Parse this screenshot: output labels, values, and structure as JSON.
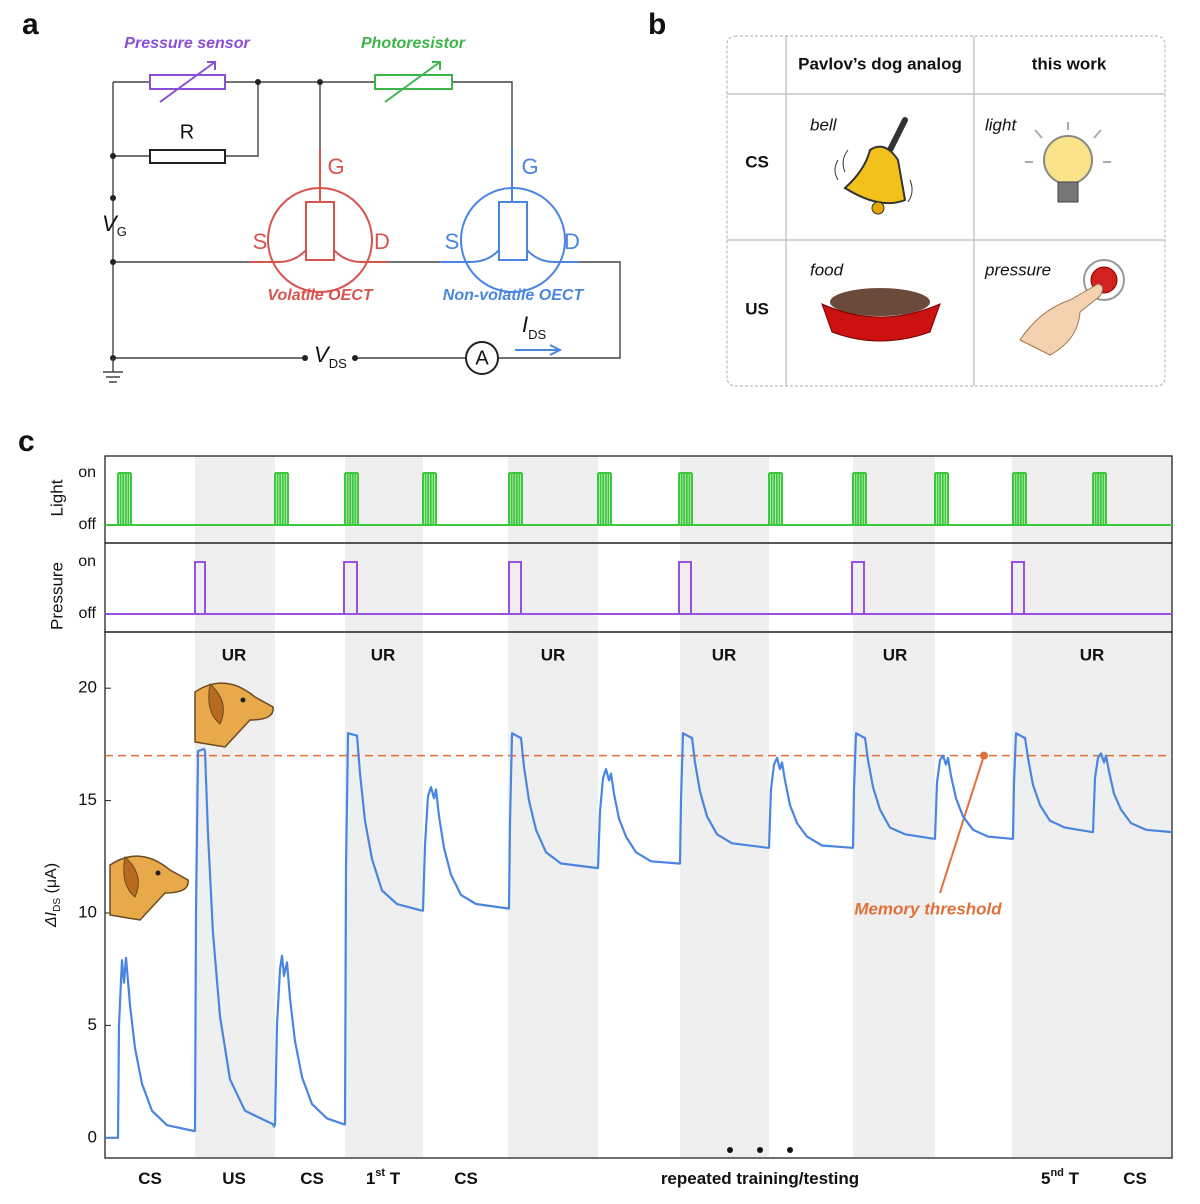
{
  "panel_labels": {
    "a": "a",
    "b": "b",
    "c": "c"
  },
  "circuit": {
    "pressure_sensor": "Pressure sensor",
    "photoresistor": "Photoresistor",
    "resistor": "R",
    "vg": {
      "main": "V",
      "sub": "G"
    },
    "volatile": {
      "g": "G",
      "s": "S",
      "d": "D",
      "label": "Volatile OECT"
    },
    "nonvolatile": {
      "g": "G",
      "s": "S",
      "d": "D",
      "label": "Non-volatile OECT"
    },
    "vds": {
      "main": "V",
      "sub": "DS"
    },
    "ammeter": "A",
    "ids": {
      "main": "I",
      "sub": "DS"
    }
  },
  "table": {
    "columns": [
      "Pavlov’s dog analog",
      "this work"
    ],
    "rows": [
      {
        "label": "CS",
        "cells": [
          "bell",
          "light"
        ]
      },
      {
        "label": "US",
        "cells": [
          "food",
          "pressure"
        ]
      }
    ]
  },
  "chart_data": {
    "type": "line",
    "color": "#4a86e0",
    "ylabel": {
      "main": "ΔI",
      "sub": "DS",
      "unit": " (μA)"
    },
    "xlim": [
      0,
      1067
    ],
    "ylim": [
      -0.9,
      22.5
    ],
    "yticks": [
      0,
      5,
      10,
      15,
      20
    ],
    "light": {
      "label": "Light",
      "levels": [
        "on",
        "off"
      ],
      "color": "#3cc83c",
      "pulses": [
        [
          13,
          26
        ],
        [
          170,
          183
        ],
        [
          240,
          253
        ],
        [
          318,
          331
        ],
        [
          404,
          417
        ],
        [
          493,
          506
        ],
        [
          574,
          587
        ],
        [
          664,
          677
        ],
        [
          748,
          761
        ],
        [
          830,
          843
        ],
        [
          908,
          921
        ],
        [
          988,
          1001
        ]
      ]
    },
    "pressure": {
      "label": "Pressure",
      "levels": [
        "on",
        "off"
      ],
      "color": "#9a4fe0",
      "pulses": [
        [
          90,
          100
        ],
        [
          239,
          252
        ],
        [
          404,
          416
        ],
        [
          574,
          586
        ],
        [
          747,
          759
        ],
        [
          907,
          919
        ]
      ]
    },
    "threshold": {
      "value": 17,
      "label": "Memory threshold",
      "color": "#e0703a"
    },
    "response_labels": [
      "UR",
      "UR",
      "UR",
      "UR",
      "UR",
      "UR"
    ],
    "phases": [
      {
        "text": "CS"
      },
      {
        "text": "US"
      },
      {
        "text": "CS"
      },
      {
        "text": "1",
        "sup": "st",
        "post": " T"
      },
      {
        "text": "CS"
      },
      {
        "text": "repeated training/testing"
      },
      {
        "text": "5",
        "sup": "nd",
        "post": " T"
      },
      {
        "text": "CS"
      }
    ],
    "x": [
      0,
      13,
      14,
      16,
      17,
      19,
      21,
      22,
      25,
      30,
      37,
      47,
      62,
      89,
      90,
      91,
      93,
      99,
      100,
      103,
      108,
      115,
      125,
      140,
      168,
      169,
      170,
      172,
      175,
      177,
      179,
      182,
      185,
      190,
      197,
      207,
      222,
      239,
      240,
      241,
      243,
      251,
      252,
      255,
      260,
      267,
      277,
      292,
      317,
      318,
      320,
      323,
      326,
      329,
      331,
      334,
      339,
      346,
      356,
      371,
      403,
      404,
      405,
      407,
      415,
      416,
      419,
      424,
      431,
      441,
      456,
      492,
      493,
      495,
      498,
      501,
      504,
      506,
      509,
      514,
      521,
      531,
      546,
      574,
      575,
      576,
      578,
      586,
      587,
      590,
      595,
      602,
      612,
      627,
      663,
      664,
      666,
      669,
      672,
      675,
      677,
      680,
      685,
      692,
      702,
      717,
      747,
      748,
      749,
      751,
      759,
      760,
      763,
      768,
      775,
      785,
      800,
      829,
      830,
      832,
      835,
      838,
      841,
      843,
      846,
      851,
      858,
      868,
      883,
      907,
      908,
      909,
      911,
      919,
      920,
      923,
      928,
      935,
      945,
      960,
      987,
      988,
      990,
      993,
      996,
      999,
      1001,
      1004,
      1009,
      1016,
      1026,
      1041,
      1067
    ],
    "values": [
      0,
      0,
      5,
      7.0,
      7.9,
      6.9,
      8.0,
      7.5,
      5.9,
      4.0,
      2.4,
      1.2,
      0.56,
      0.3,
      0.3,
      10,
      17.2,
      17.3,
      17.2,
      13.5,
      9.1,
      5.4,
      2.6,
      1.2,
      0.6,
      0.5,
      0.6,
      5,
      7.5,
      8.1,
      7.2,
      7.8,
      6.2,
      4.3,
      2.7,
      1.5,
      0.86,
      0.6,
      0.6,
      12,
      18,
      17.9,
      17.9,
      16.2,
      14.1,
      12.4,
      11.0,
      10.4,
      10.1,
      10.1,
      13,
      15.2,
      15.6,
      15.1,
      15.5,
      14.3,
      12.9,
      11.7,
      10.8,
      10.4,
      10.2,
      10.2,
      14,
      18,
      17.8,
      17.8,
      16.5,
      15.0,
      13.7,
      12.7,
      12.2,
      12.0,
      12.0,
      14.5,
      16.0,
      16.4,
      15.9,
      16.2,
      15.3,
      14.2,
      13.4,
      12.7,
      12.3,
      12.2,
      12.2,
      15,
      18,
      17.8,
      17.8,
      16.7,
      15.4,
      14.3,
      13.5,
      13.1,
      12.9,
      12.9,
      15.5,
      16.6,
      16.9,
      16.4,
      16.7,
      15.9,
      14.8,
      14.0,
      13.4,
      13.0,
      12.9,
      12.9,
      15.5,
      18,
      17.8,
      17.8,
      16.8,
      15.6,
      14.6,
      13.8,
      13.5,
      13.3,
      13.3,
      15.8,
      16.8,
      17.0,
      16.6,
      16.9,
      16.1,
      15.1,
      14.3,
      13.7,
      13.4,
      13.3,
      13.3,
      15.8,
      18,
      17.8,
      17.8,
      16.9,
      15.7,
      14.8,
      14.1,
      13.8,
      13.6,
      13.6,
      16,
      16.9,
      17.1,
      16.7,
      17.0,
      16.3,
      15.3,
      14.6,
      14.0,
      13.7,
      13.6
    ]
  }
}
